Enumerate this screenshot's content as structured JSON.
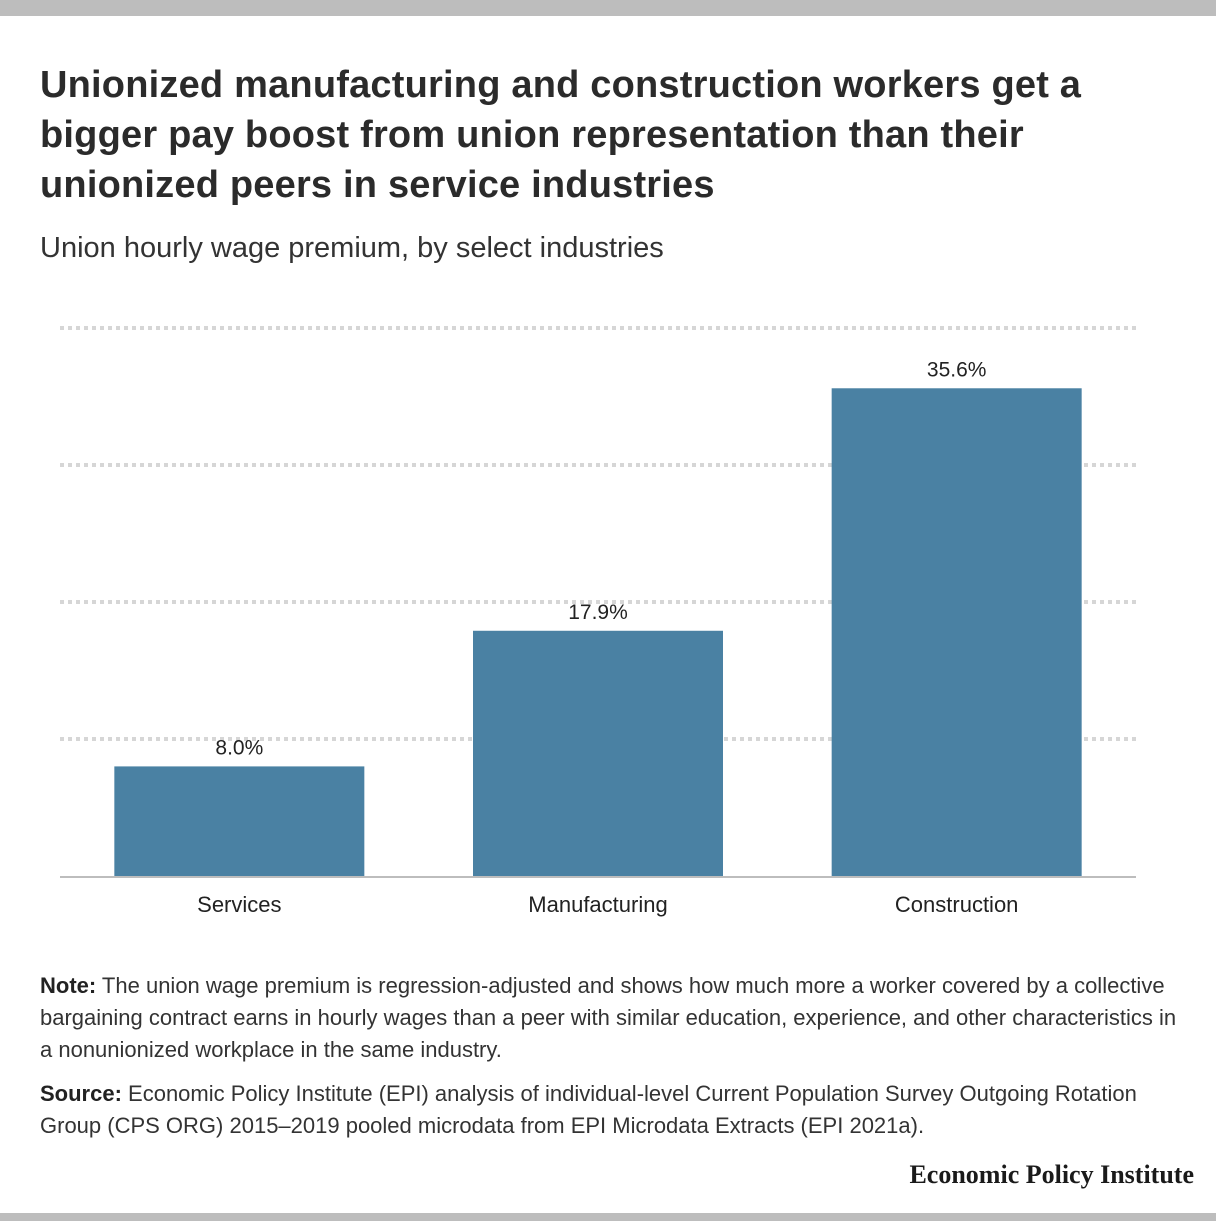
{
  "title": "Unionized manufacturing and construction workers get a bigger pay boost from union representation than their unionized peers in service industries",
  "subtitle": "Union hourly wage premium, by select industries",
  "note": {
    "label": "Note:",
    "text": " The union wage premium is regression-adjusted and shows how much more a worker covered by a collective bargaining contract earns in hourly wages than a peer with similar education, experience, and other characteristics in a nonunionized workplace in the same industry."
  },
  "source": {
    "label": "Source:",
    "text": " Economic Policy Institute (EPI) analysis of individual-level Current Population Survey Outgoing Rotation Group (CPS ORG) 2015–2019 pooled microdata from EPI Microdata Extracts (EPI 2021a)."
  },
  "brand": "Economic Policy Institute",
  "colors": {
    "bar": "#4a81a3",
    "grid": "#d6d6d6",
    "axis": "#bdbdbd"
  },
  "chart_data": {
    "type": "bar",
    "categories": [
      "Services",
      "Manufacturing",
      "Construction"
    ],
    "values": [
      8.0,
      17.9,
      35.6
    ],
    "value_labels": [
      "8.0%",
      "17.9%",
      "35.6%"
    ],
    "ylim": [
      0,
      40
    ],
    "grid": true,
    "gridlines": [
      10,
      20,
      30,
      40
    ],
    "xlabel": "",
    "ylabel": ""
  }
}
